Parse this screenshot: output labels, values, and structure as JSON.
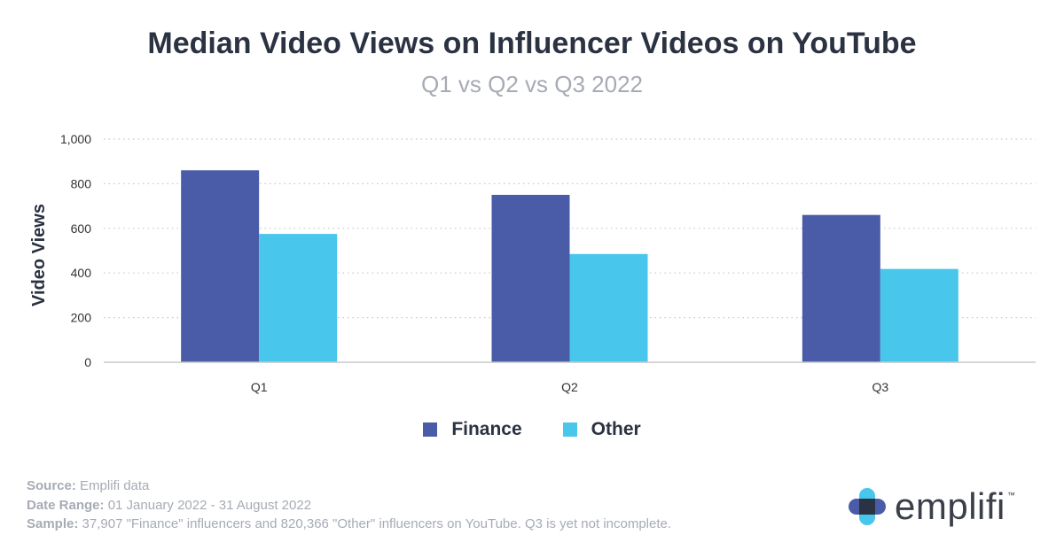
{
  "chart_data": {
    "type": "bar",
    "title": "Median Video Views on Influencer Videos on YouTube",
    "subtitle": "Q1 vs Q2 vs Q3 2022",
    "categories": [
      "Q1",
      "Q2",
      "Q3"
    ],
    "series": [
      {
        "name": "Finance",
        "color": "#4a5ca8",
        "values": [
          860,
          750,
          660
        ]
      },
      {
        "name": "Other",
        "color": "#48c6ec",
        "values": [
          575,
          485,
          418
        ]
      }
    ],
    "xlabel": "",
    "ylabel": "Video Views",
    "ylim": [
      0,
      1000
    ],
    "yticks": [
      0,
      200,
      400,
      600,
      800,
      1000
    ],
    "ytick_labels": [
      "0",
      "200",
      "400",
      "600",
      "800",
      "1,000"
    ],
    "grid": true,
    "legend_position": "bottom"
  },
  "footer": {
    "source_key": "Source:",
    "source_value": " Emplifi data",
    "date_key": "Date Range:",
    "date_value": " 01 January 2022 - 31 August 2022",
    "sample_key": "Sample:",
    "sample_value": " 37,907 \"Finance\" influencers and 820,366 \"Other\" influencers on YouTube. Q3 is yet not incomplete."
  },
  "logo": {
    "text": "emplifi",
    "tm": "™",
    "icon": "emplifi-logo-icon",
    "colors": [
      "#48c6ec",
      "#4a5ca8",
      "#2b3242"
    ]
  }
}
